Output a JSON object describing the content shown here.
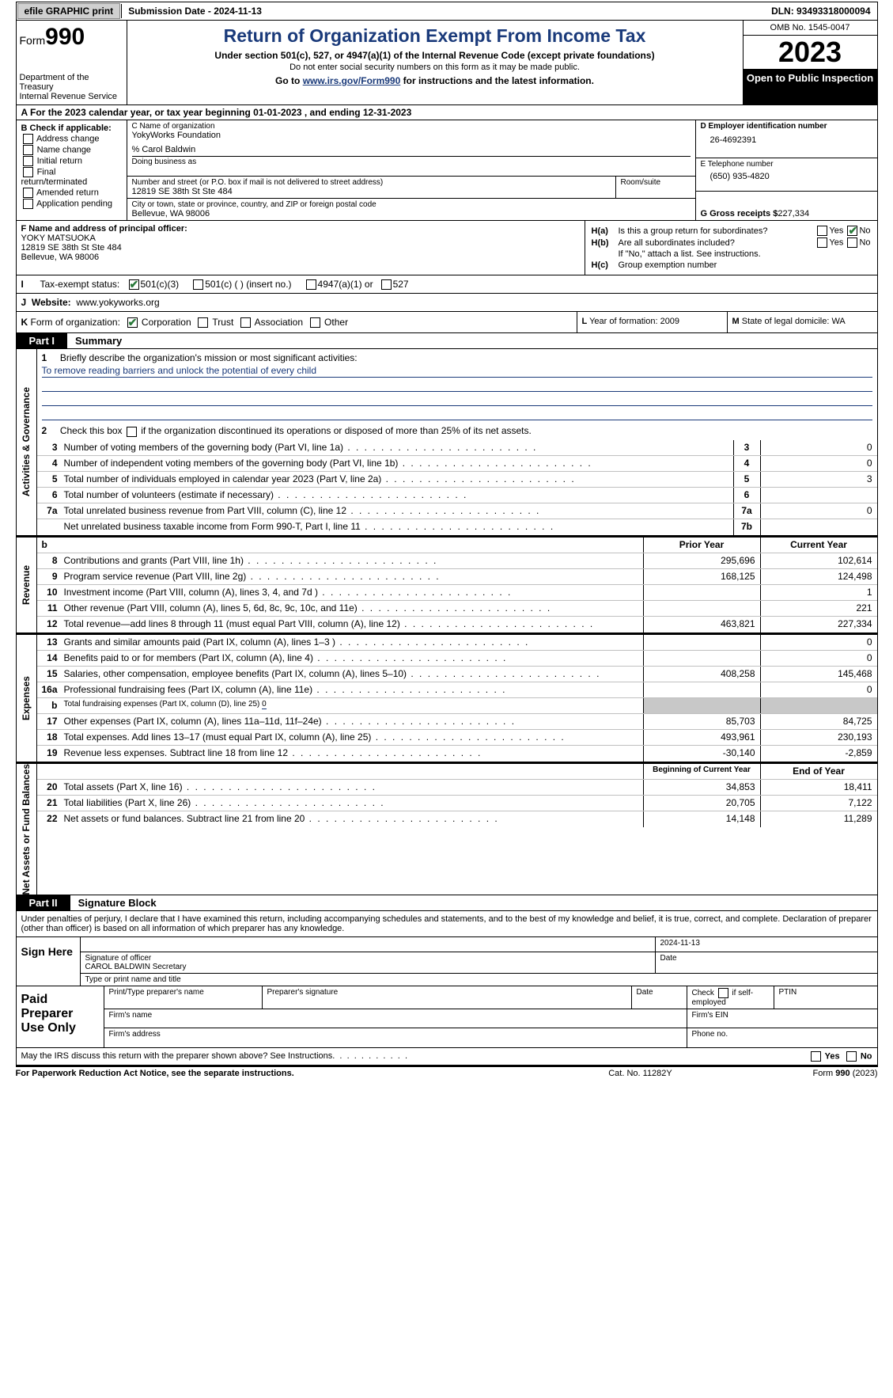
{
  "colors": {
    "header_blue": "#1a3a7a",
    "check_green": "#2a7a3a",
    "shade": "#c8c8c8"
  },
  "topbar": {
    "efile": "efile GRAPHIC print",
    "submission": "Submission Date - 2024-11-13",
    "dln": "DLN: 93493318000094"
  },
  "header": {
    "form_word": "Form",
    "form_num": "990",
    "dept": "Department of the Treasury",
    "irs": "Internal Revenue Service",
    "title": "Return of Organization Exempt From Income Tax",
    "sub1": "Under section 501(c), 527, or 4947(a)(1) of the Internal Revenue Code (except private foundations)",
    "sub2": "Do not enter social security numbers on this form as it may be made public.",
    "sub3_pre": "Go to ",
    "sub3_link": "www.irs.gov/Form990",
    "sub3_post": " for instructions and the latest information.",
    "omb": "OMB No. 1545-0047",
    "year": "2023",
    "open": "Open to Public Inspection"
  },
  "row_a": "A For the 2023 calendar year, or tax year beginning 01-01-2023   , and ending 12-31-2023",
  "col_b": {
    "label": "B Check if applicable:",
    "items": [
      "Address change",
      "Name change",
      "Initial return",
      "Final return/terminated",
      "Amended return",
      "Application pending"
    ]
  },
  "col_c": {
    "name_lbl": "C Name of organization",
    "name": "YokyWorks Foundation",
    "care": "% Carol Baldwin",
    "dba_lbl": "Doing business as",
    "addr_lbl": "Number and street (or P.O. box if mail is not delivered to street address)",
    "addr": "12819 SE 38th St Ste 484",
    "room_lbl": "Room/suite",
    "city_lbl": "City or town, state or province, country, and ZIP or foreign postal code",
    "city": "Bellevue, WA  98006"
  },
  "col_d": {
    "ein_lbl": "D Employer identification number",
    "ein": "26-4692391",
    "tel_lbl": "E Telephone number",
    "tel": "(650) 935-4820",
    "gross_lbl": "G Gross receipts $ ",
    "gross": "227,334"
  },
  "row_f": {
    "lbl": "F  Name and address of principal officer:",
    "name": "YOKY MATSUOKA",
    "addr1": "12819 SE 38th St Ste 484",
    "addr2": "Bellevue, WA  98006"
  },
  "row_h": {
    "a_lbl": "H(a)",
    "a_txt": "Is this a group return for subordinates?",
    "a_yes": "Yes",
    "a_no": "No",
    "a_checked": "no",
    "b_lbl": "H(b)",
    "b_txt": "Are all subordinates included?",
    "b_yes": "Yes",
    "b_no": "No",
    "b_note": "If \"No,\" attach a list. See instructions.",
    "c_lbl": "H(c)",
    "c_txt": "Group exemption number"
  },
  "row_i": {
    "lbl": "I",
    "txt": "Tax-exempt status:",
    "o1": "501(c)(3)",
    "o2": "501(c) (  ) (insert no.)",
    "o3": "4947(a)(1) or",
    "o4": "527",
    "checked": "501c3"
  },
  "row_j": {
    "lbl": "J",
    "txt": "Website:",
    "val": "www.yokyworks.org"
  },
  "row_k": {
    "lbl": "K",
    "txt": "Form of organization:",
    "o1": "Corporation",
    "o2": "Trust",
    "o3": "Association",
    "o4": "Other",
    "checked": "corp"
  },
  "row_l": {
    "lbl": "L",
    "txt": "Year of formation: 2009"
  },
  "row_m": {
    "lbl": "M",
    "txt": "State of legal domicile: WA"
  },
  "part1": {
    "tag": "Part I",
    "title": "Summary"
  },
  "sec_ag": {
    "vlabel": "Activities & Governance",
    "l1": {
      "num": "1",
      "desc": "Briefly describe the organization's mission or most significant activities:",
      "mission": "To remove reading barriers and unlock the potential of every child"
    },
    "l2": {
      "num": "2",
      "desc": "Check this box ▢ if the organization discontinued its operations or disposed of more than 25% of its net assets."
    },
    "rows": [
      {
        "num": "3",
        "desc": "Number of voting members of the governing body (Part VI, line 1a)",
        "box": "3",
        "val": "0"
      },
      {
        "num": "4",
        "desc": "Number of independent voting members of the governing body (Part VI, line 1b)",
        "box": "4",
        "val": "0"
      },
      {
        "num": "5",
        "desc": "Total number of individuals employed in calendar year 2023 (Part V, line 2a)",
        "box": "5",
        "val": "3"
      },
      {
        "num": "6",
        "desc": "Total number of volunteers (estimate if necessary)",
        "box": "6",
        "val": ""
      },
      {
        "num": "7a",
        "desc": "Total unrelated business revenue from Part VIII, column (C), line 12",
        "box": "7a",
        "val": "0"
      },
      {
        "num": "",
        "desc": "Net unrelated business taxable income from Form 990-T, Part I, line 11",
        "box": "7b",
        "val": ""
      }
    ]
  },
  "sec_rev": {
    "vlabel": "Revenue",
    "hdr_b": "b",
    "col_prior": "Prior Year",
    "col_curr": "Current Year",
    "rows": [
      {
        "num": "8",
        "desc": "Contributions and grants (Part VIII, line 1h)",
        "prior": "295,696",
        "curr": "102,614"
      },
      {
        "num": "9",
        "desc": "Program service revenue (Part VIII, line 2g)",
        "prior": "168,125",
        "curr": "124,498"
      },
      {
        "num": "10",
        "desc": "Investment income (Part VIII, column (A), lines 3, 4, and 7d )",
        "prior": "",
        "curr": "1"
      },
      {
        "num": "11",
        "desc": "Other revenue (Part VIII, column (A), lines 5, 6d, 8c, 9c, 10c, and 11e)",
        "prior": "",
        "curr": "221"
      },
      {
        "num": "12",
        "desc": "Total revenue—add lines 8 through 11 (must equal Part VIII, column (A), line 12)",
        "prior": "463,821",
        "curr": "227,334"
      }
    ]
  },
  "sec_exp": {
    "vlabel": "Expenses",
    "rows": [
      {
        "num": "13",
        "desc": "Grants and similar amounts paid (Part IX, column (A), lines 1–3 )",
        "prior": "",
        "curr": "0"
      },
      {
        "num": "14",
        "desc": "Benefits paid to or for members (Part IX, column (A), line 4)",
        "prior": "",
        "curr": "0"
      },
      {
        "num": "15",
        "desc": "Salaries, other compensation, employee benefits (Part IX, column (A), lines 5–10)",
        "prior": "408,258",
        "curr": "145,468"
      },
      {
        "num": "16a",
        "desc": "Professional fundraising fees (Part IX, column (A), line 11e)",
        "prior": "",
        "curr": "0"
      },
      {
        "num": "b",
        "desc": "Total fundraising expenses (Part IX, column (D), line 25) 0",
        "prior": "shade",
        "curr": "shade",
        "small": true
      },
      {
        "num": "17",
        "desc": "Other expenses (Part IX, column (A), lines 11a–11d, 11f–24e)",
        "prior": "85,703",
        "curr": "84,725"
      },
      {
        "num": "18",
        "desc": "Total expenses. Add lines 13–17 (must equal Part IX, column (A), line 25)",
        "prior": "493,961",
        "curr": "230,193"
      },
      {
        "num": "19",
        "desc": "Revenue less expenses. Subtract line 18 from line 12",
        "prior": "-30,140",
        "curr": "-2,859"
      }
    ]
  },
  "sec_net": {
    "vlabel": "Net Assets or Fund Balances",
    "col_prior": "Beginning of Current Year",
    "col_curr": "End of Year",
    "rows": [
      {
        "num": "20",
        "desc": "Total assets (Part X, line 16)",
        "prior": "34,853",
        "curr": "18,411"
      },
      {
        "num": "21",
        "desc": "Total liabilities (Part X, line 26)",
        "prior": "20,705",
        "curr": "7,122"
      },
      {
        "num": "22",
        "desc": "Net assets or fund balances. Subtract line 21 from line 20",
        "prior": "14,148",
        "curr": "11,289"
      }
    ]
  },
  "part2": {
    "tag": "Part II",
    "title": "Signature Block"
  },
  "sig_decl": "Under penalties of perjury, I declare that I have examined this return, including accompanying schedules and statements, and to the best of my knowledge and belief, it is true, correct, and complete. Declaration of preparer (other than officer) is based on all information of which preparer has any knowledge.",
  "sign": {
    "lbl": "Sign Here",
    "date": "2024-11-13",
    "sig_lbl": "Signature of officer",
    "date_lbl": "Date",
    "name": "CAROL BALDWIN  Secretary",
    "type_lbl": "Type or print name and title"
  },
  "prep": {
    "lbl": "Paid Preparer Use Only",
    "c1": "Print/Type preparer's name",
    "c2": "Preparer's signature",
    "c3": "Date",
    "c4_pre": "Check",
    "c4_post": "if self-employed",
    "c5": "PTIN",
    "r2a": "Firm's name",
    "r2b": "Firm's EIN",
    "r3a": "Firm's address",
    "r3b": "Phone no."
  },
  "discuss": {
    "txt": "May the IRS discuss this return with the preparer shown above? See Instructions.",
    "yes": "Yes",
    "no": "No"
  },
  "foot": {
    "l": "For Paperwork Reduction Act Notice, see the separate instructions.",
    "c": "Cat. No. 11282Y",
    "r": "Form 990 (2023)",
    "r_bold": "990"
  }
}
